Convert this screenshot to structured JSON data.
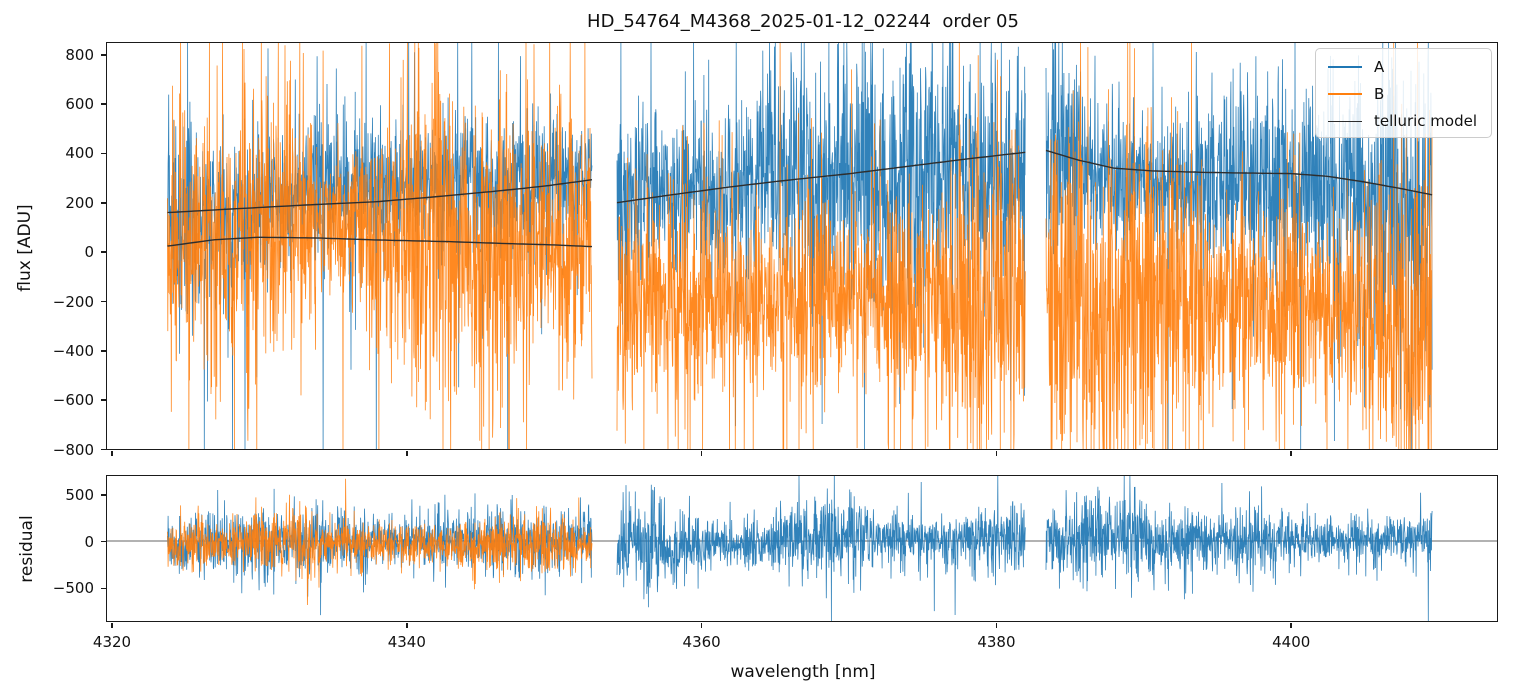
{
  "figure": {
    "title": "HD_54764_M4368_2025-01-12_02244  order 05",
    "background": "#ffffff"
  },
  "colors": {
    "series_a": "#1f77b4",
    "series_b": "#ff7f0e",
    "telluric_model": "#2e2e2e",
    "zero_line": "#666666",
    "spine": "#1a1a1a"
  },
  "legend": {
    "position": "upper right",
    "entries": [
      {
        "label": "A",
        "color": "#1f77b4",
        "linewidth": 2.5
      },
      {
        "label": "B",
        "color": "#ff7f0e",
        "linewidth": 2.5
      },
      {
        "label": "telluric model",
        "color": "#2e2e2e",
        "linewidth": 1.6
      }
    ]
  },
  "chart_data": [
    {
      "type": "line",
      "id": "flux_panel",
      "title": "HD_54764_M4368_2025-01-12_02244  order 05",
      "ylabel": "flux [ADU]",
      "xlabel": "",
      "grid": false,
      "xlim": [
        4319.7,
        4414.0
      ],
      "ylim": [
        -800,
        845
      ],
      "yticks": [
        -800,
        -600,
        -400,
        -200,
        0,
        200,
        400,
        600,
        800
      ],
      "xticks": [
        4320,
        4340,
        4360,
        4380,
        4400
      ],
      "x_tick_labels_visible": false,
      "segment_gaps_nm": [
        [
          4352.6,
          4354.3
        ],
        [
          4382.0,
          4383.4
        ]
      ],
      "series": [
        {
          "name": "A",
          "color": "#1f77b4",
          "style": "noisy-spectrum",
          "segments": [
            {
              "x0": 4323.8,
              "x1": 4352.6,
              "sigma": 205,
              "spike_p": 0.05,
              "spike_s": 2.4,
              "seed": 101,
              "ppnm": 46,
              "mean": [
                [
                  4323.8,
                  158
                ],
                [
                  4328,
                  172
                ],
                [
                  4333,
                  188
                ],
                [
                  4338,
                  202
                ],
                [
                  4342,
                  222
                ],
                [
                  4346,
                  244
                ],
                [
                  4349.5,
                  266
                ],
                [
                  4352.6,
                  291
                ]
              ]
            },
            {
              "x0": 4354.3,
              "x1": 4382.0,
              "sigma": 225,
              "spike_p": 0.05,
              "spike_s": 2.4,
              "seed": 102,
              "ppnm": 46,
              "mean": [
                [
                  4354.3,
                  198
                ],
                [
                  4358,
                  230
                ],
                [
                  4362,
                  262
                ],
                [
                  4366,
                  290
                ],
                [
                  4370,
                  315
                ],
                [
                  4374,
                  345
                ],
                [
                  4378,
                  375
                ],
                [
                  4382,
                  402
                ]
              ]
            },
            {
              "x0": 4383.4,
              "x1": 4409.6,
              "sigma": 225,
              "spike_p": 0.05,
              "spike_s": 2.4,
              "seed": 103,
              "ppnm": 46,
              "mean": [
                [
                  4383.4,
                  410
                ],
                [
                  4385.5,
                  372
                ],
                [
                  4388,
                  338
                ],
                [
                  4390.5,
                  327
                ],
                [
                  4394,
                  321
                ],
                [
                  4397,
                  318
                ],
                [
                  4400,
                  316
                ],
                [
                  4402.5,
                  305
                ],
                [
                  4405,
                  282
                ],
                [
                  4407.5,
                  255
                ],
                [
                  4409.6,
                  230
                ]
              ]
            }
          ]
        },
        {
          "name": "B",
          "color": "#ff7f0e",
          "style": "noisy-spectrum",
          "segments": [
            {
              "x0": 4323.8,
              "x1": 4352.6,
              "sigma": 255,
              "spike_p": 0.05,
              "spike_s": 2.4,
              "seed": 201,
              "ppnm": 46,
              "mean": [
                [
                  4323.8,
                  22
                ],
                [
                  4327,
                  48
                ],
                [
                  4330,
                  58
                ],
                [
                  4334,
                  55
                ],
                [
                  4338,
                  47
                ],
                [
                  4343,
                  40
                ],
                [
                  4347,
                  32
                ],
                [
                  4350,
                  27
                ],
                [
                  4352.6,
                  20
                ]
              ]
            },
            {
              "x0": 4354.3,
              "x1": 4382.0,
              "sigma": 285,
              "spike_p": 0.05,
              "spike_s": 2.4,
              "seed": 202,
              "ppnm": 46,
              "mean": [
                [
                  4354.3,
                  -250
                ],
                [
                  4382,
                  -270
                ]
              ]
            },
            {
              "x0": 4383.4,
              "x1": 4409.6,
              "sigma": 295,
              "spike_p": 0.05,
              "spike_s": 2.4,
              "seed": 203,
              "ppnm": 46,
              "mean": [
                [
                  4383.4,
                  -270
                ],
                [
                  4409.6,
                  -295
                ]
              ]
            }
          ]
        },
        {
          "name": "telluric model",
          "color": "#2e2e2e",
          "style": "smooth-model",
          "curves": [
            [
              [
                4323.8,
                158
              ],
              [
                4328,
                172
              ],
              [
                4333,
                188
              ],
              [
                4338,
                202
              ],
              [
                4342,
                222
              ],
              [
                4346,
                244
              ],
              [
                4349.5,
                266
              ],
              [
                4352.6,
                291
              ]
            ],
            [
              [
                4323.8,
                22
              ],
              [
                4327,
                48
              ],
              [
                4330,
                58
              ],
              [
                4334,
                55
              ],
              [
                4338,
                47
              ],
              [
                4343,
                40
              ],
              [
                4347,
                32
              ],
              [
                4350,
                27
              ],
              [
                4352.6,
                20
              ]
            ],
            [
              [
                4354.3,
                198
              ],
              [
                4358,
                230
              ],
              [
                4362,
                262
              ],
              [
                4366,
                290
              ],
              [
                4370,
                315
              ],
              [
                4374,
                345
              ],
              [
                4378,
                375
              ],
              [
                4382,
                402
              ]
            ],
            [
              [
                4383.4,
                410
              ],
              [
                4385.5,
                372
              ],
              [
                4388,
                338
              ],
              [
                4390.5,
                327
              ],
              [
                4394,
                321
              ],
              [
                4397,
                318
              ],
              [
                4400,
                316
              ],
              [
                4402.5,
                305
              ],
              [
                4405,
                282
              ],
              [
                4407.5,
                255
              ],
              [
                4409.6,
                230
              ]
            ]
          ]
        }
      ]
    },
    {
      "type": "line",
      "id": "residual_panel",
      "ylabel": "residual",
      "xlabel": "wavelength [nm]",
      "grid": false,
      "xlim": [
        4319.7,
        4414.0
      ],
      "ylim": [
        -855,
        695
      ],
      "yticks": [
        -500,
        0,
        500
      ],
      "xticks": [
        4320,
        4340,
        4360,
        4380,
        4400
      ],
      "x_tick_labels_visible": true,
      "zero_line": 0,
      "series": [
        {
          "name": "A residual",
          "color": "#1f77b4",
          "style": "noisy-spectrum",
          "segments": [
            {
              "x0": 4323.8,
              "x1": 4352.6,
              "sigma": 150,
              "spike_p": 0.035,
              "spike_s": 2.2,
              "seed": 301,
              "ppnm": 46,
              "mean": [
                [
                  4323.8,
                  -45
                ],
                [
                  4352.6,
                  -45
                ]
              ]
            },
            {
              "x0": 4354.3,
              "x1": 4382.0,
              "sigma": 190,
              "spike_p": 0.035,
              "spike_s": 2.2,
              "seed": 302,
              "ppnm": 46,
              "mean": [
                [
                  4354.3,
                  -25
                ],
                [
                  4382,
                  -25
                ]
              ]
            },
            {
              "x0": 4383.4,
              "x1": 4409.6,
              "sigma": 190,
              "spike_p": 0.035,
              "spike_s": 2.2,
              "seed": 303,
              "ppnm": 46,
              "mean": [
                [
                  4383.4,
                  -25
                ],
                [
                  4409.6,
                  -25
                ]
              ]
            }
          ]
        },
        {
          "name": "B residual",
          "color": "#ff7f0e",
          "style": "noisy-spectrum",
          "segments": [
            {
              "x0": 4323.8,
              "x1": 4352.6,
              "sigma": 158,
              "spike_p": 0.035,
              "spike_s": 2.2,
              "seed": 401,
              "ppnm": 46,
              "mean": [
                [
                  4323.8,
                  -60
                ],
                [
                  4352.6,
                  -60
                ]
              ]
            }
          ]
        }
      ]
    }
  ]
}
